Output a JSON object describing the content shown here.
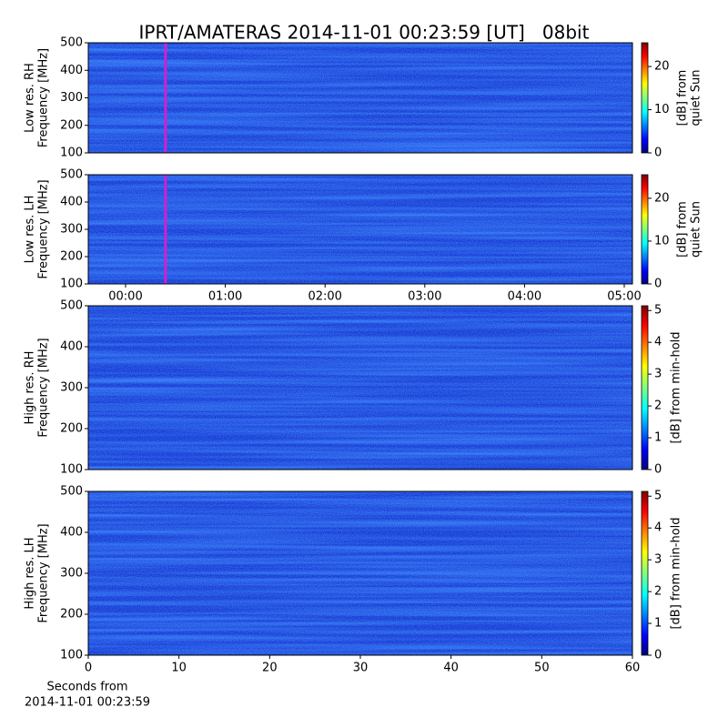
{
  "title": "IPRT/AMATERAS 2014-11-01 00:23:59 [UT]   08bit",
  "chart_data": [
    {
      "type": "heatmap",
      "ylabel": [
        "Low res. RH",
        "Frequency [MHz]"
      ],
      "ylim": [
        100,
        500
      ],
      "yticks": [
        100,
        200,
        300,
        400,
        500
      ],
      "xlim": [
        -0.374,
        5.082
      ],
      "cursor_x": 0.4,
      "cursor_color": "#d020d0",
      "colorbar": {
        "label": [
          "[dB] from",
          "quiet Sun"
        ],
        "lim": [
          0,
          25.5
        ],
        "ticks": [
          0,
          10,
          20
        ]
      }
    },
    {
      "type": "heatmap",
      "ylabel": [
        "Low res. LH",
        "Frequency [MHz]"
      ],
      "ylim": [
        100,
        500
      ],
      "yticks": [
        100,
        200,
        300,
        400,
        500
      ],
      "xlim": [
        -0.374,
        5.082
      ],
      "cursor_x": 0.4,
      "cursor_color": "#d020d0",
      "xticks": [
        {
          "value": 0,
          "label": "00:00"
        },
        {
          "value": 1,
          "label": "01:00"
        },
        {
          "value": 2,
          "label": "02:00"
        },
        {
          "value": 3,
          "label": "03:00"
        },
        {
          "value": 4,
          "label": "04:00"
        },
        {
          "value": 5,
          "label": "05:00"
        }
      ],
      "colorbar": {
        "label": [
          "[dB] from",
          "quiet Sun"
        ],
        "lim": [
          0,
          25.5
        ],
        "ticks": [
          0,
          10,
          20
        ]
      }
    },
    {
      "type": "heatmap",
      "ylabel": [
        "High res. RH",
        "Frequency [MHz]"
      ],
      "ylim": [
        100,
        500
      ],
      "yticks": [
        100,
        200,
        300,
        400,
        500
      ],
      "xlim": [
        0,
        60
      ],
      "colorbar": {
        "label": [
          "[dB] from min-hold"
        ],
        "lim": [
          0,
          5.15
        ],
        "ticks": [
          0,
          1,
          2,
          3,
          4,
          5
        ]
      }
    },
    {
      "type": "heatmap",
      "ylabel": [
        "High res. LH",
        "Frequency [MHz]"
      ],
      "ylim": [
        100,
        500
      ],
      "yticks": [
        100,
        200,
        300,
        400,
        500
      ],
      "xlim": [
        0,
        60
      ],
      "xticks": [
        0,
        10,
        20,
        30,
        40,
        50,
        60
      ],
      "xlabel": [
        "Seconds from",
        "2014-11-01 00:23:59"
      ],
      "colorbar": {
        "label": [
          "[dB] from min-hold"
        ],
        "lim": [
          0,
          5.15
        ],
        "ticks": [
          0,
          1,
          2,
          3,
          4,
          5
        ]
      }
    }
  ]
}
